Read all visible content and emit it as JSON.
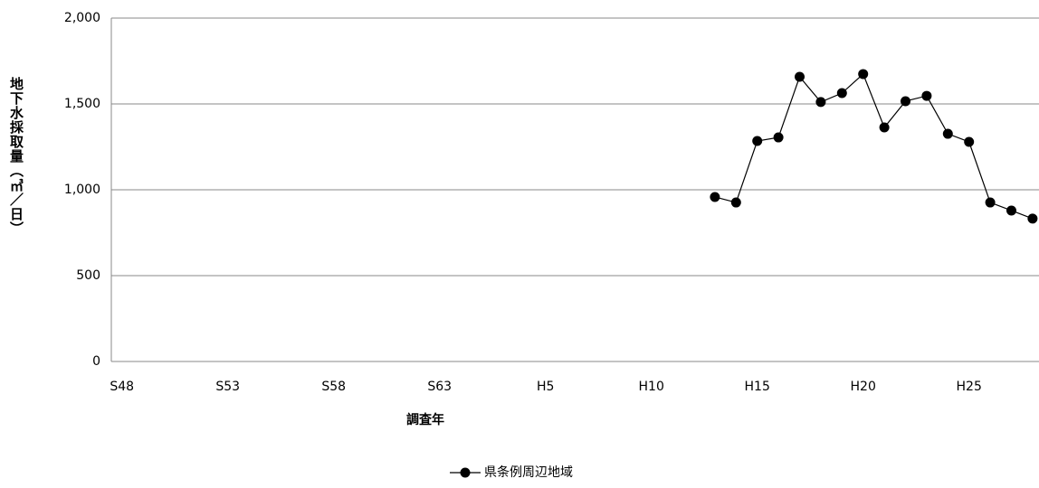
{
  "chart_data": {
    "type": "line",
    "y_label": "地下水採取量（㎥／日）",
    "x_label": "調査年",
    "categories": [
      "S48",
      null,
      null,
      null,
      null,
      "S53",
      null,
      null,
      null,
      null,
      "S58",
      null,
      null,
      null,
      null,
      "S63",
      null,
      null,
      null,
      null,
      "H5",
      null,
      null,
      null,
      null,
      "H10",
      null,
      null,
      null,
      null,
      "H15",
      null,
      null,
      null,
      null,
      "H20",
      null,
      null,
      null,
      null,
      "H25",
      null,
      null,
      null
    ],
    "series": [
      {
        "name": "県条例周辺地域",
        "color": "#000000",
        "values": [
          null,
          null,
          null,
          null,
          null,
          null,
          null,
          null,
          null,
          null,
          null,
          null,
          null,
          null,
          null,
          null,
          null,
          null,
          null,
          null,
          null,
          null,
          null,
          null,
          null,
          null,
          null,
          null,
          958,
          926,
          1284,
          1305,
          1658,
          1511,
          1563,
          1674,
          1363,
          1516,
          1547,
          1326,
          1279,
          926,
          879,
          832
        ]
      }
    ],
    "ylim": [
      0,
      2000
    ],
    "yticks": [
      0,
      {
        "value": 500,
        "label": "500"
      },
      {
        "value": 1000,
        "label": "1,000"
      },
      {
        "value": 1500,
        "label": "1,500"
      },
      {
        "value": 2000,
        "label": "2,000"
      }
    ],
    "grid": true,
    "legend": "bottom"
  }
}
